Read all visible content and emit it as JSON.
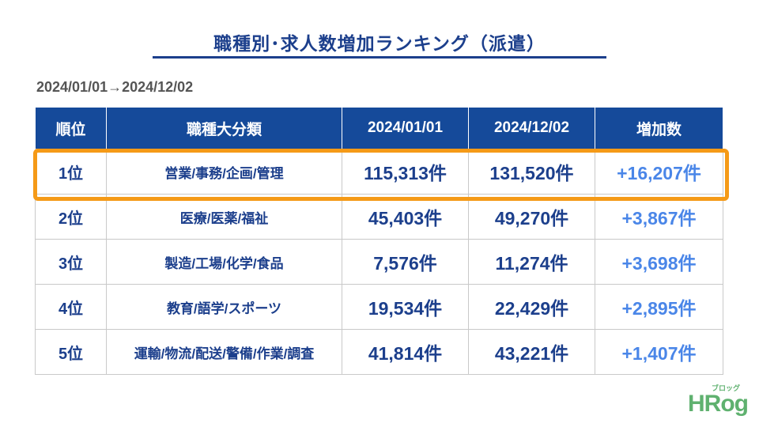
{
  "title": "職種別･求人数増加ランキング（派遣）",
  "period": "2024/01/01→2024/12/02",
  "table": {
    "headers": [
      "順位",
      "職種大分類",
      "2024/01/01",
      "2024/12/02",
      "増加数"
    ],
    "rows": [
      {
        "rank": "1位",
        "category": "営業/事務/企画/管理",
        "start": "115,313件",
        "end": "131,520件",
        "increase": "+16,207件"
      },
      {
        "rank": "2位",
        "category": "医療/医薬/福祉",
        "start": "45,403件",
        "end": "49,270件",
        "increase": "+3,867件"
      },
      {
        "rank": "3位",
        "category": "製造/工場/化学/食品",
        "start": "7,576件",
        "end": "11,274件",
        "increase": "+3,698件"
      },
      {
        "rank": "4位",
        "category": "教育/語学/スポーツ",
        "start": "19,534件",
        "end": "22,429件",
        "increase": "+2,895件"
      },
      {
        "rank": "5位",
        "category": "運輸/物流/配送/警備/作業/調査",
        "start": "41,814件",
        "end": "43,221件",
        "increase": "+1,407件"
      }
    ]
  },
  "logo": {
    "main": "HRog",
    "sub": "ブロッグ"
  },
  "colors": {
    "header_bg": "#154a9a",
    "title": "#1c3f8c",
    "increase": "#4a86e8",
    "highlight": "#f59a17",
    "logo": "#5fb16f"
  }
}
